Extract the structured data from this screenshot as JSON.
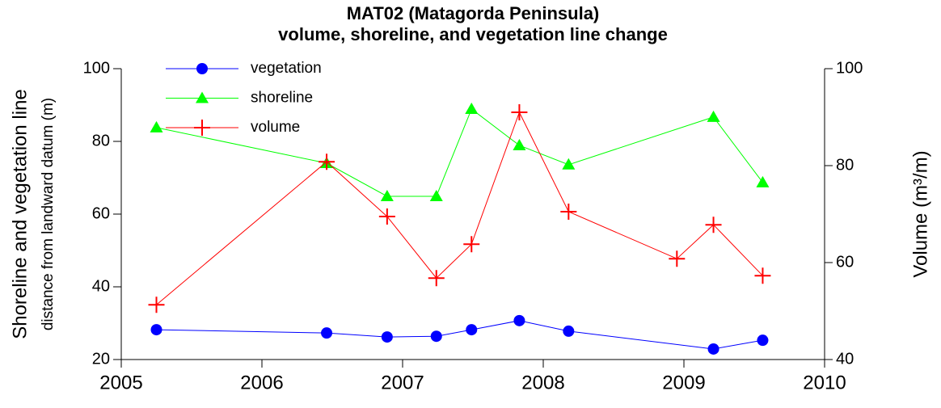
{
  "chart_data": {
    "type": "line",
    "title": "MAT02 (Matagorda Peninsula)",
    "subtitle": "volume, shoreline, and vegetation line change",
    "y_label": "Shoreline and vegetation line",
    "y_label_sub": "distance from landward datum (m)",
    "y2_label": "Volume (m³/m)",
    "xlim": [
      2005,
      2010
    ],
    "xticks": [
      2005,
      2006,
      2007,
      2008,
      2009,
      2010
    ],
    "ylim": [
      20,
      100
    ],
    "yticks": [
      20,
      40,
      60,
      80,
      100
    ],
    "y2lim": [
      40,
      100
    ],
    "y2ticks": [
      40,
      60,
      80,
      100
    ],
    "legend": "upper-left",
    "series": [
      {
        "name": "vegetation",
        "color": "#0000ff",
        "marker": "circle",
        "axis": "y",
        "x": [
          2005.25,
          2006.46,
          2006.89,
          2007.24,
          2007.49,
          2007.83,
          2008.18,
          2009.21,
          2009.56
        ],
        "values": [
          28.2,
          27.3,
          26.2,
          26.4,
          28.2,
          30.7,
          27.8,
          22.9,
          25.3
        ]
      },
      {
        "name": "shoreline",
        "color": "#00ff00",
        "marker": "triangle",
        "axis": "y",
        "x": [
          2005.25,
          2006.46,
          2006.89,
          2007.24,
          2007.49,
          2007.83,
          2008.18,
          2009.21,
          2009.56
        ],
        "values": [
          83.8,
          74.0,
          64.9,
          64.9,
          88.9,
          78.9,
          73.6,
          86.7,
          68.7
        ]
      },
      {
        "name": "volume",
        "color": "#ff0000",
        "marker": "plus",
        "axis": "y2",
        "x": [
          2005.25,
          2006.46,
          2006.89,
          2007.24,
          2007.49,
          2007.83,
          2008.18,
          2008.95,
          2009.21,
          2009.56
        ],
        "values": [
          51.3,
          80.8,
          69.5,
          56.8,
          63.8,
          91.0,
          70.5,
          60.8,
          67.8,
          57.3
        ]
      }
    ]
  }
}
